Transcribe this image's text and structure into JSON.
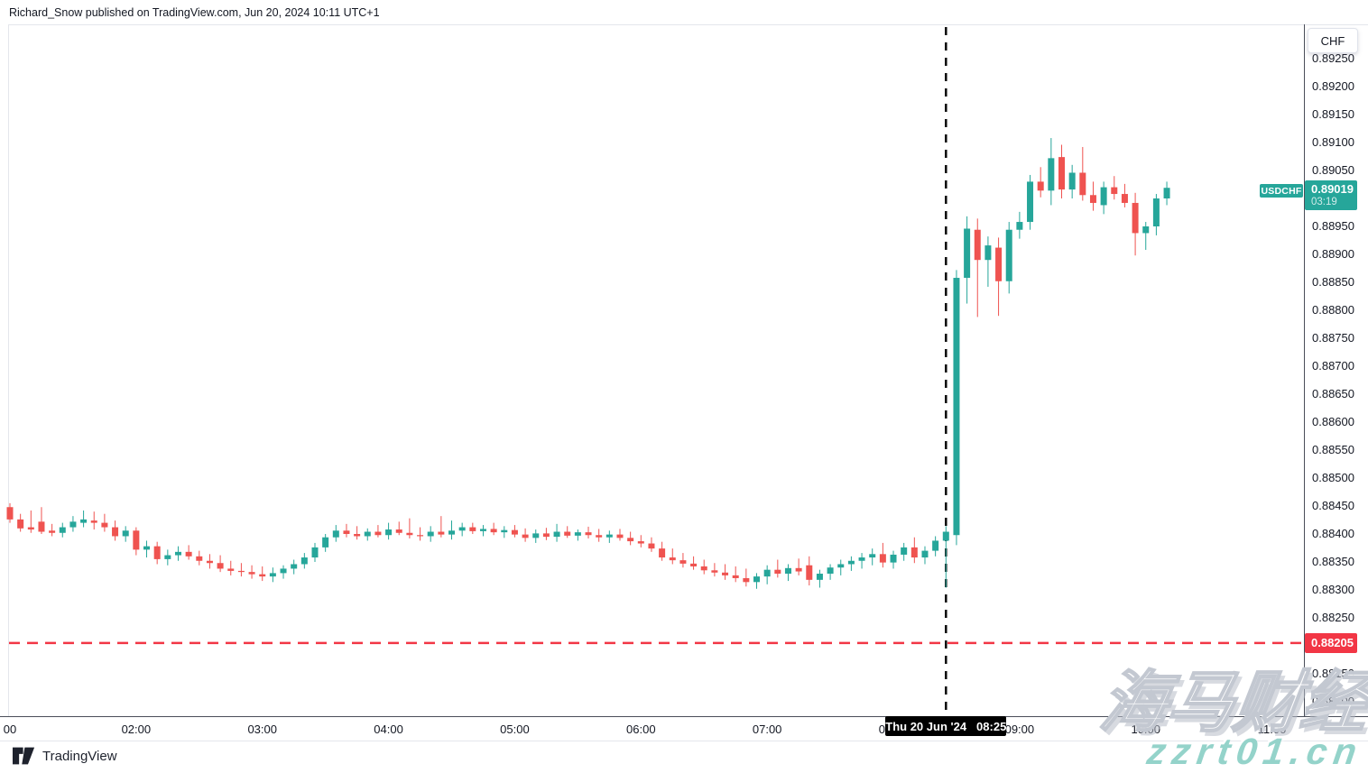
{
  "header": {
    "byline": "Richard_Snow published on TradingView.com, Jun 20, 2024 10:11 UTC+1"
  },
  "footer": {
    "brand": "TradingView"
  },
  "watermark": {
    "cjk": "海马财经",
    "latin": "zzrt01.cn"
  },
  "symbol_badge": {
    "label": "USDCHF",
    "color": "#26a69a"
  },
  "price_scale": {
    "currency_button": "CHF",
    "ticks": [
      0.8925,
      0.892,
      0.8915,
      0.891,
      0.8905,
      0.8895,
      0.889,
      0.8885,
      0.888,
      0.8875,
      0.887,
      0.8865,
      0.886,
      0.8855,
      0.885,
      0.8845,
      0.884,
      0.8835,
      0.883,
      0.8825,
      0.8815,
      0.881
    ],
    "last_price_badge": {
      "price": "0.89019",
      "countdown": "03:19",
      "color": "#26a69a"
    },
    "alert_badge": {
      "price": "0.88205",
      "color": "#f23645"
    }
  },
  "time_scale": {
    "labels": [
      {
        "text": "00",
        "idx": 0
      },
      {
        "text": "02:00",
        "idx": 12
      },
      {
        "text": "03:00",
        "idx": 24
      },
      {
        "text": "04:00",
        "idx": 36
      },
      {
        "text": "05:00",
        "idx": 48
      },
      {
        "text": "06:00",
        "idx": 60
      },
      {
        "text": "07:00",
        "idx": 72
      },
      {
        "text": "08:00",
        "idx": 84
      },
      {
        "text": "09:00",
        "idx": 96
      },
      {
        "text": "10:00",
        "idx": 108
      },
      {
        "text": "11:00",
        "idx": 120
      }
    ],
    "date_badge": {
      "date": "Thu 20 Jun '24",
      "time": "08:25"
    }
  },
  "chart_data": {
    "type": "candlestick",
    "symbol": "USDCHF",
    "interval_minutes": 5,
    "start_time": "01:00",
    "up_color": "#26a69a",
    "down_color": "#ef5350",
    "y_axis": {
      "visible_min": 0.881,
      "visible_max": 0.8925,
      "tick_step": 0.0005
    },
    "alert_line": {
      "price": 0.88205,
      "style": "dashed",
      "color": "#f23645"
    },
    "event_line": {
      "time": "08:25",
      "style": "dashed",
      "color": "#0b0b0b"
    },
    "last_price": 0.89019,
    "candles": [
      [
        0.88448,
        0.88455,
        0.8842,
        0.88426
      ],
      [
        0.88426,
        0.88436,
        0.88404,
        0.8841
      ],
      [
        0.88412,
        0.88442,
        0.88402,
        0.88408
      ],
      [
        0.88422,
        0.88448,
        0.884,
        0.88404
      ],
      [
        0.88406,
        0.88418,
        0.88396,
        0.88402
      ],
      [
        0.88402,
        0.8842,
        0.88394,
        0.88412
      ],
      [
        0.88412,
        0.88432,
        0.88404,
        0.88422
      ],
      [
        0.8842,
        0.88442,
        0.88412,
        0.88426
      ],
      [
        0.88424,
        0.8844,
        0.88408,
        0.8842
      ],
      [
        0.8842,
        0.88436,
        0.88404,
        0.88412
      ],
      [
        0.88412,
        0.88424,
        0.88388,
        0.88396
      ],
      [
        0.88396,
        0.88414,
        0.88386,
        0.88406
      ],
      [
        0.88406,
        0.88412,
        0.88362,
        0.88372
      ],
      [
        0.88372,
        0.88388,
        0.88358,
        0.88378
      ],
      [
        0.88378,
        0.88386,
        0.88346,
        0.88355
      ],
      [
        0.88355,
        0.88372,
        0.88344,
        0.88362
      ],
      [
        0.88362,
        0.88378,
        0.88352,
        0.88368
      ],
      [
        0.88368,
        0.8838,
        0.88354,
        0.8836
      ],
      [
        0.8836,
        0.8837,
        0.88344,
        0.88352
      ],
      [
        0.88352,
        0.88364,
        0.88338,
        0.88348
      ],
      [
        0.88348,
        0.88362,
        0.88332,
        0.88338
      ],
      [
        0.88338,
        0.88352,
        0.88326,
        0.88334
      ],
      [
        0.88334,
        0.88348,
        0.88324,
        0.88332
      ],
      [
        0.88332,
        0.88344,
        0.8832,
        0.88328
      ],
      [
        0.88328,
        0.88342,
        0.88316,
        0.88324
      ],
      [
        0.88324,
        0.8834,
        0.88314,
        0.8833
      ],
      [
        0.8833,
        0.88344,
        0.8832,
        0.88338
      ],
      [
        0.88338,
        0.88354,
        0.88328,
        0.88346
      ],
      [
        0.88346,
        0.88366,
        0.88338,
        0.88358
      ],
      [
        0.88358,
        0.88384,
        0.8835,
        0.88376
      ],
      [
        0.88376,
        0.884,
        0.88368,
        0.88394
      ],
      [
        0.88394,
        0.88416,
        0.88386,
        0.88406
      ],
      [
        0.88406,
        0.88418,
        0.88394,
        0.884
      ],
      [
        0.884,
        0.88414,
        0.8839,
        0.88396
      ],
      [
        0.88396,
        0.8841,
        0.88388,
        0.88404
      ],
      [
        0.88404,
        0.88416,
        0.88394,
        0.88398
      ],
      [
        0.88398,
        0.8842,
        0.8839,
        0.88408
      ],
      [
        0.88408,
        0.88422,
        0.88398,
        0.88402
      ],
      [
        0.88402,
        0.88428,
        0.88392,
        0.88398
      ],
      [
        0.88398,
        0.88412,
        0.88388,
        0.88396
      ],
      [
        0.88396,
        0.88414,
        0.88386,
        0.88404
      ],
      [
        0.88404,
        0.88432,
        0.88394,
        0.88399
      ],
      [
        0.88399,
        0.88424,
        0.8839,
        0.88406
      ],
      [
        0.88406,
        0.8842,
        0.88396,
        0.88412
      ],
      [
        0.88412,
        0.8842,
        0.884,
        0.88405
      ],
      [
        0.88405,
        0.88416,
        0.88396,
        0.88409
      ],
      [
        0.88409,
        0.8842,
        0.88398,
        0.88403
      ],
      [
        0.88403,
        0.88414,
        0.88393,
        0.88407
      ],
      [
        0.88407,
        0.88416,
        0.88394,
        0.88399
      ],
      [
        0.88399,
        0.8841,
        0.88386,
        0.88393
      ],
      [
        0.88393,
        0.88408,
        0.88384,
        0.88401
      ],
      [
        0.88401,
        0.88411,
        0.88389,
        0.88395
      ],
      [
        0.88395,
        0.88418,
        0.88386,
        0.88404
      ],
      [
        0.88404,
        0.88414,
        0.88393,
        0.88397
      ],
      [
        0.88397,
        0.88408,
        0.88388,
        0.88403
      ],
      [
        0.88403,
        0.88413,
        0.88392,
        0.88398
      ],
      [
        0.88398,
        0.88409,
        0.88386,
        0.88394
      ],
      [
        0.88394,
        0.88406,
        0.88384,
        0.88399
      ],
      [
        0.88399,
        0.88409,
        0.88388,
        0.88393
      ],
      [
        0.88393,
        0.88404,
        0.8838,
        0.88387
      ],
      [
        0.88387,
        0.88398,
        0.88376,
        0.88383
      ],
      [
        0.88383,
        0.88394,
        0.88368,
        0.88374
      ],
      [
        0.88374,
        0.88386,
        0.88352,
        0.88358
      ],
      [
        0.88358,
        0.88374,
        0.88346,
        0.88353
      ],
      [
        0.88353,
        0.88366,
        0.8834,
        0.88347
      ],
      [
        0.88347,
        0.8836,
        0.88336,
        0.88342
      ],
      [
        0.88342,
        0.88354,
        0.88328,
        0.88335
      ],
      [
        0.88335,
        0.88348,
        0.88324,
        0.88331
      ],
      [
        0.88331,
        0.88346,
        0.88318,
        0.88326
      ],
      [
        0.88326,
        0.88342,
        0.88314,
        0.88321
      ],
      [
        0.88321,
        0.88338,
        0.88306,
        0.88314
      ],
      [
        0.88314,
        0.8833,
        0.88302,
        0.88324
      ],
      [
        0.88324,
        0.88344,
        0.8831,
        0.88336
      ],
      [
        0.88336,
        0.88354,
        0.88322,
        0.88329
      ],
      [
        0.88329,
        0.88346,
        0.88316,
        0.88339
      ],
      [
        0.88339,
        0.88356,
        0.88326,
        0.88333
      ],
      [
        0.88344,
        0.8836,
        0.88308,
        0.88318
      ],
      [
        0.88318,
        0.88336,
        0.88304,
        0.88329
      ],
      [
        0.88329,
        0.88346,
        0.88318,
        0.8834
      ],
      [
        0.8834,
        0.88354,
        0.88326,
        0.88346
      ],
      [
        0.88346,
        0.8836,
        0.88334,
        0.88352
      ],
      [
        0.88352,
        0.88366,
        0.88338,
        0.88358
      ],
      [
        0.88358,
        0.88374,
        0.88344,
        0.88364
      ],
      [
        0.88364,
        0.88384,
        0.8834,
        0.88349
      ],
      [
        0.88349,
        0.8837,
        0.88338,
        0.88363
      ],
      [
        0.88363,
        0.88384,
        0.88352,
        0.88376
      ],
      [
        0.88376,
        0.88394,
        0.88348,
        0.88358
      ],
      [
        0.88358,
        0.88378,
        0.88346,
        0.8837
      ],
      [
        0.8837,
        0.88396,
        0.8836,
        0.88388
      ],
      [
        0.88388,
        0.88414,
        0.88304,
        0.88404
      ],
      [
        0.88398,
        0.88872,
        0.8838,
        0.88858
      ],
      [
        0.88858,
        0.88968,
        0.88812,
        0.88946
      ],
      [
        0.88944,
        0.88964,
        0.88788,
        0.8889
      ],
      [
        0.8889,
        0.88932,
        0.88842,
        0.88916
      ],
      [
        0.88912,
        0.8893,
        0.8879,
        0.88852
      ],
      [
        0.88852,
        0.88958,
        0.8883,
        0.88944
      ],
      [
        0.88944,
        0.88976,
        0.88928,
        0.88958
      ],
      [
        0.88958,
        0.89042,
        0.88944,
        0.8903
      ],
      [
        0.8903,
        0.89056,
        0.89002,
        0.89014
      ],
      [
        0.89014,
        0.89108,
        0.88988,
        0.89072
      ],
      [
        0.89074,
        0.89096,
        0.89,
        0.89016
      ],
      [
        0.89016,
        0.8906,
        0.89,
        0.89046
      ],
      [
        0.89046,
        0.89092,
        0.88996,
        0.89006
      ],
      [
        0.89006,
        0.8903,
        0.88978,
        0.88992
      ],
      [
        0.88988,
        0.8903,
        0.88972,
        0.8902
      ],
      [
        0.8902,
        0.8904,
        0.88998,
        0.89008
      ],
      [
        0.89008,
        0.89026,
        0.88984,
        0.88992
      ],
      [
        0.88992,
        0.8901,
        0.88898,
        0.88938
      ],
      [
        0.88938,
        0.88958,
        0.88908,
        0.8895
      ],
      [
        0.8895,
        0.89008,
        0.88934,
        0.89
      ],
      [
        0.89,
        0.8903,
        0.88988,
        0.89019
      ]
    ]
  }
}
